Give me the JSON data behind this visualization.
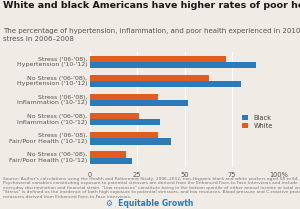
{
  "title": "White and black Americans have higher rates of poor health when stressed",
  "subtitle": "The percentage of hypertension, inflammation, and poor health experienced in 2010–2012 due to\nstress in 2006–2008",
  "categories": [
    "Stress ('06-'08),\nHypertension ('10-'12)",
    "No Stress ('06-'08),\nHypertension ('10-'12)",
    "Stress ('06-'08),\nInflammation ('10-'12)",
    "No Stress ('06-'08),\nInflammation ('10-'12)",
    "Stress ('06-'08),\nFair/Poor Health ('10-'12)",
    "No Stress ('06-'08),\nFair/Poor Health ('10-'12)"
  ],
  "black_values": [
    88,
    80,
    52,
    37,
    43,
    22
  ],
  "white_values": [
    72,
    63,
    36,
    26,
    36,
    19
  ],
  "black_color": "#2b7bba",
  "white_color": "#e05c20",
  "bg_color": "#f0ebe4",
  "xlim": [
    0,
    100
  ],
  "xticks": [
    0,
    25,
    50,
    75,
    100
  ],
  "xticklabels": [
    "0",
    "25",
    "50",
    "75",
    "100%"
  ],
  "source_text": "Source: Author's calculations using the Health and Retirement Study, 2006–2012, non-Hispanic black and white workers aged 58 to 64.\nPsychosocial variables constituting exposure to potential stressors are derived from the Enhanced Face-to-Face Interviews and include\neveryday discrimination and financial strain. \"Low resources\" constitute being in the bottom quintile of either annual income or total wealth.\n\"Stress\" is defined as the incidence of both high exposure to potential stressors, and low resources. Blood pressure and C-reactive protein\nmeasures derived from Enhanced Face-to-Face interviews.",
  "title_fontsize": 6.8,
  "subtitle_fontsize": 5.0,
  "label_fontsize": 4.5,
  "tick_fontsize": 4.8,
  "legend_fontsize": 4.8,
  "source_fontsize": 3.2,
  "logo_text": "Equitable Growth",
  "logo_fontsize": 5.5
}
